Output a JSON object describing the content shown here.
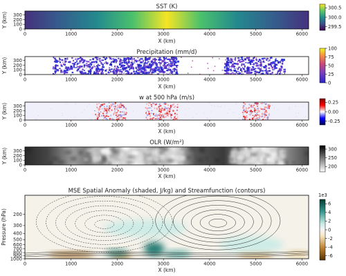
{
  "chart_data": [
    {
      "type": "heatmap",
      "title": "SST (K)",
      "xlabel": "X (km)",
      "ylabel": "Y (km)",
      "xlim": [
        0,
        6144
      ],
      "ylim": [
        0,
        384
      ],
      "xticks": [
        "0",
        "1000",
        "2000",
        "3000",
        "4000",
        "5000",
        "6000"
      ],
      "yticks": [
        "0",
        "100",
        "200",
        "300"
      ],
      "colorbar": {
        "ticks": [
          "299.5",
          "300.0",
          "300.5"
        ],
        "range": [
          299.3,
          300.7
        ],
        "colormap": "viridis"
      },
      "profile_x": [
        0,
        500,
        1000,
        1500,
        2000,
        2500,
        3000,
        3500,
        4000,
        4500,
        5000,
        5500,
        6144
      ],
      "profile_values": [
        299.3,
        299.5,
        299.75,
        300.05,
        300.35,
        300.6,
        300.7,
        300.6,
        300.35,
        300.05,
        299.75,
        299.5,
        299.3
      ]
    },
    {
      "type": "heatmap",
      "title": "Precipitation (mm/d)",
      "xlabel": "X (km)",
      "ylabel": "Y (km)",
      "xlim": [
        0,
        6144
      ],
      "ylim": [
        0,
        384
      ],
      "xticks": [
        "0",
        "1000",
        "2000",
        "3000",
        "4000",
        "5000",
        "6000"
      ],
      "yticks": [
        "0",
        "100",
        "200",
        "300"
      ],
      "colorbar": {
        "ticks": [
          "0",
          "25",
          "50",
          "75",
          "100"
        ],
        "range": [
          0,
          100
        ],
        "colormap": "plasma"
      },
      "description_regions": [
        {
          "x_from": 600,
          "x_to": 2100,
          "level": "moderate"
        },
        {
          "x_from": 2100,
          "x_to": 3300,
          "level": "high"
        },
        {
          "x_from": 4300,
          "x_to": 5600,
          "level": "moderate"
        }
      ]
    },
    {
      "type": "heatmap",
      "title": "w at 500 hPa (m/s)",
      "xlabel": "X (km)",
      "ylabel": "Y (km)",
      "xlim": [
        0,
        6144
      ],
      "ylim": [
        0,
        384
      ],
      "xticks": [
        "0",
        "1000",
        "2000",
        "3000",
        "4000",
        "5000",
        "6000"
      ],
      "yticks": [
        "0",
        "100",
        "200",
        "300"
      ],
      "colorbar": {
        "ticks": [
          "0.25",
          "0.00",
          "-0.25"
        ],
        "range": [
          -0.35,
          0.35
        ],
        "colormap": "seismic"
      }
    },
    {
      "type": "heatmap",
      "title": "OLR (W/m²)",
      "xlabel": "X (km)",
      "ylabel": "Y (km)",
      "xlim": [
        0,
        6144
      ],
      "ylim": [
        0,
        384
      ],
      "xticks": [
        "0",
        "1000",
        "2000",
        "3000",
        "4000",
        "5000",
        "6000"
      ],
      "yticks": [
        "0",
        "100",
        "200",
        "300"
      ],
      "colorbar": {
        "ticks": [
          "300",
          "250",
          "200"
        ],
        "range": [
          170,
          320
        ],
        "colormap": "greys"
      }
    },
    {
      "type": "heatmap",
      "title": "MSE Spatial Anomaly (shaded, J/kg) and Streamfunction (contours)",
      "xlabel": "X (km)",
      "ylabel": "Pressure (hPa)",
      "xlim": [
        0,
        6144
      ],
      "ylim": [
        1000,
        100
      ],
      "xticks": [
        "0",
        "1000",
        "2000",
        "3000",
        "4000",
        "5000",
        "6000"
      ],
      "yticks": [
        "200",
        "300",
        "400",
        "500",
        "600",
        "700",
        "800",
        "900",
        "1000"
      ],
      "colorbar": {
        "ticks": [
          "6",
          "4",
          "2",
          "0",
          "-2",
          "-4",
          "-6"
        ],
        "range": [
          -7,
          7
        ],
        "colormap": "BrBG",
        "multiplier": "1e3"
      },
      "anomalies": [
        {
          "x": 1000,
          "p": 880,
          "value": -6,
          "sx": 500,
          "sp": 70
        },
        {
          "x": 2100,
          "p": 930,
          "value": -3,
          "sx": 220,
          "sp": 60
        },
        {
          "x": 2000,
          "p": 820,
          "value": 5.5,
          "sx": 250,
          "sp": 90
        },
        {
          "x": 2800,
          "p": 700,
          "value": 6.5,
          "sx": 220,
          "sp": 170
        },
        {
          "x": 3300,
          "p": 850,
          "value": 4,
          "sx": 300,
          "sp": 100
        },
        {
          "x": 2600,
          "p": 330,
          "value": 1.2,
          "sx": 900,
          "sp": 100
        },
        {
          "x": 5000,
          "p": 880,
          "value": -4,
          "sx": 380,
          "sp": 70
        },
        {
          "x": 4900,
          "p": 600,
          "value": 1.5,
          "sx": 700,
          "sp": 180
        },
        {
          "x": 5900,
          "p": 850,
          "value": -1.5,
          "sx": 250,
          "sp": 80
        }
      ]
    }
  ]
}
